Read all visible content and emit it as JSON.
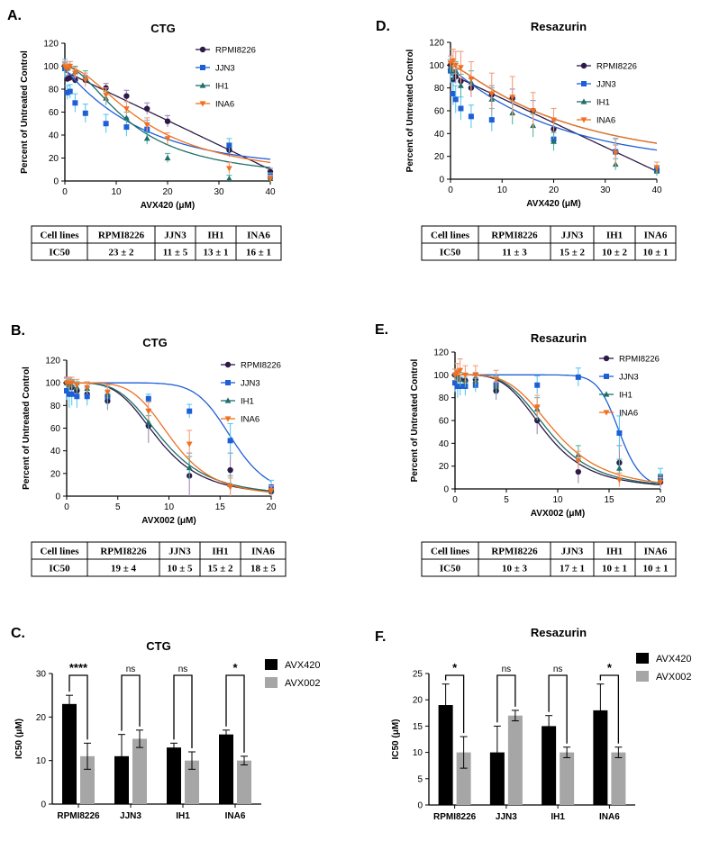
{
  "panels": [
    {
      "letter": "A.",
      "title": "CTG",
      "xlabel": "AVX420 (μM)",
      "ylabel": "Percent of Untreated Control",
      "xticks": [
        "0",
        "10",
        "20",
        "30",
        "40"
      ],
      "yticks": [
        "0",
        "20",
        "40",
        "60",
        "80",
        "100",
        "120"
      ]
    },
    {
      "letter": "D.",
      "title": "Resazurin",
      "xlabel": "AVX420 (μM)",
      "ylabel": "Percent of Untreated Control",
      "xticks": [
        "0",
        "10",
        "20",
        "30",
        "40"
      ],
      "yticks": [
        "0",
        "20",
        "40",
        "60",
        "80",
        "100",
        "120"
      ]
    },
    {
      "letter": "B.",
      "title": "CTG",
      "xlabel": "AVX002 (μM)",
      "ylabel": "Percent of Untreated Control",
      "xticks": [
        "0",
        "5",
        "10",
        "15",
        "20"
      ],
      "yticks": [
        "0",
        "20",
        "40",
        "60",
        "80",
        "100",
        "120"
      ]
    },
    {
      "letter": "E.",
      "title": "Resazurin",
      "xlabel": "AVX002 (μM)",
      "ylabel": "Percent of Untreated Control",
      "xticks": [
        "0",
        "5",
        "10",
        "15",
        "20"
      ],
      "yticks": [
        "0",
        "20",
        "40",
        "60",
        "80",
        "100",
        "120"
      ]
    },
    {
      "letter": "C.",
      "title": "CTG",
      "xlabel": "",
      "ylabel": "IC50 (μM)",
      "xticks": [
        "RPMI8226",
        "JJN3",
        "IH1",
        "INA6"
      ],
      "yticks": [
        "0",
        "10",
        "20",
        "30"
      ]
    },
    {
      "letter": "F.",
      "title": "Resazurin",
      "xlabel": "",
      "ylabel": "IC50 (μM)",
      "xticks": [
        "RPMI8226",
        "JJN3",
        "IH1",
        "INA6"
      ],
      "yticks": [
        "0",
        "5",
        "10",
        "15",
        "20",
        "25"
      ]
    }
  ],
  "legend_lines": [
    "RPMI8226",
    "JJN3",
    "IH1",
    "INA6"
  ],
  "legend_bars": [
    "AVX420",
    "AVX002"
  ],
  "colors": {
    "RPMI8226": "#2e1a47",
    "JJN3": "#1f5fd6",
    "IH1": "#1f6e6a",
    "INA6": "#f07020",
    "RPMI8226_err": "#a08ab8",
    "JJN3_err": "#5cc8f0",
    "IH1_err": "#4fb8a8",
    "INA6_err": "#f0a080",
    "AVX420": "#000000",
    "AVX002": "#a6a6a6"
  },
  "tables": [
    {
      "header": [
        "Cell lines",
        "RPMI8226",
        "JJN3",
        "IH1",
        "INA6"
      ],
      "row": [
        "IC50",
        "23 ± 2",
        "11 ± 5",
        "13 ± 1",
        "16 ± 1"
      ]
    },
    {
      "header": [
        "Cell lines",
        "RPMI8226",
        "JJN3",
        "IH1",
        "INA6"
      ],
      "row": [
        "IC50",
        "11 ± 3",
        "15 ± 2",
        "10 ± 2",
        "10 ± 1"
      ]
    },
    {
      "header": [
        "Cell lines",
        "RPMI8226",
        "JJN3",
        "IH1",
        "INA6"
      ],
      "row": [
        "IC50",
        "19 ± 4",
        "10 ± 5",
        "15 ± 2",
        "18 ± 5"
      ]
    },
    {
      "header": [
        "Cell lines",
        "RPMI8226",
        "JJN3",
        "IH1",
        "INA6"
      ],
      "row": [
        "IC50",
        "10 ± 3",
        "17 ± 1",
        "10 ± 1",
        "10 ± 1"
      ]
    }
  ],
  "chart_data": [
    {
      "type": "scatter",
      "title": "CTG",
      "xlabel": "AVX420 (μM)",
      "ylabel": "Percent of Untreated Control",
      "xlim": [
        0,
        40
      ],
      "ylim": [
        0,
        120
      ],
      "x": [
        0,
        0.5,
        1,
        2,
        4,
        8,
        12,
        16,
        20,
        32,
        40
      ],
      "series": [
        {
          "name": "RPMI8226",
          "values": [
            100,
            89,
            90,
            88,
            88,
            81,
            74,
            63,
            52,
            27,
            8
          ],
          "errors": [
            3,
            3,
            3,
            3,
            4,
            4,
            5,
            5,
            5,
            6,
            3
          ],
          "curve": "linear"
        },
        {
          "name": "JJN3",
          "values": [
            98,
            77,
            78,
            68,
            59,
            50,
            47,
            45,
            null,
            31,
            4
          ],
          "errors": [
            8,
            6,
            6,
            8,
            8,
            8,
            8,
            8,
            null,
            6,
            3
          ],
          "curve": "exp",
          "ic50": 11
        },
        {
          "name": "IH1",
          "values": [
            100,
            98,
            100,
            95,
            90,
            72,
            55,
            37,
            20,
            2,
            2
          ],
          "errors": [
            4,
            4,
            4,
            5,
            6,
            6,
            5,
            5,
            4,
            3,
            2
          ],
          "curve": "sigmoid",
          "ic50": 13,
          "hill": 1.8
        },
        {
          "name": "INA6",
          "values": [
            100,
            98,
            100,
            94,
            88,
            75,
            63,
            49,
            37,
            11,
            2
          ],
          "errors": [
            4,
            4,
            4,
            5,
            6,
            6,
            6,
            6,
            5,
            5,
            3
          ],
          "curve": "sigmoid",
          "ic50": 16,
          "hill": 1.8
        }
      ]
    },
    {
      "type": "scatter",
      "title": "Resazurin",
      "xlabel": "AVX420 (μM)",
      "ylabel": "Percent of Untreated Control",
      "xlim": [
        0,
        40
      ],
      "ylim": [
        0,
        120
      ],
      "x": [
        0,
        0.5,
        1,
        2,
        4,
        8,
        12,
        16,
        20,
        32,
        40
      ],
      "series": [
        {
          "name": "RPMI8226",
          "values": [
            100,
            87,
            90,
            86,
            80,
            74,
            71,
            60,
            44,
            24,
            8
          ],
          "errors": [
            5,
            6,
            6,
            6,
            8,
            8,
            8,
            9,
            7,
            6,
            4
          ],
          "curve": "linear"
        },
        {
          "name": "JJN3",
          "values": [
            95,
            75,
            70,
            62,
            55,
            52,
            null,
            null,
            35,
            24,
            8
          ],
          "errors": [
            10,
            10,
            12,
            10,
            10,
            10,
            null,
            null,
            6,
            12,
            4
          ],
          "curve": "exp",
          "ic50": 15
        },
        {
          "name": "IH1",
          "values": [
            98,
            95,
            95,
            82,
            85,
            70,
            58,
            47,
            33,
            13,
            7
          ],
          "errors": [
            5,
            8,
            8,
            10,
            10,
            10,
            10,
            10,
            8,
            5,
            4
          ],
          "curve": "sigmoid",
          "ic50": 22,
          "hill": 1.3
        },
        {
          "name": "INA6",
          "values": [
            102,
            104,
            100,
            98,
            88,
            75,
            72,
            60,
            52,
            23,
            10
          ],
          "errors": [
            6,
            10,
            12,
            14,
            15,
            18,
            18,
            16,
            10,
            12,
            5
          ],
          "curve": "sigmoid",
          "ic50": 22,
          "hill": 1.3
        }
      ]
    },
    {
      "type": "scatter",
      "title": "CTG",
      "xlabel": "AVX002 (μM)",
      "ylabel": "Percent of Untreated Control",
      "xlim": [
        0,
        20
      ],
      "ylim": [
        0,
        120
      ],
      "x": [
        0,
        0.25,
        0.5,
        1,
        2,
        4,
        8,
        12,
        16,
        20
      ],
      "series": [
        {
          "name": "RPMI8226",
          "values": [
            100,
            98,
            96,
            93,
            90,
            84,
            62,
            18,
            23,
            4
          ],
          "errors": [
            5,
            6,
            6,
            6,
            6,
            8,
            15,
            20,
            15,
            4
          ],
          "curve": "sigmoid",
          "ic50": 9,
          "hill": 4
        },
        {
          "name": "JJN3",
          "values": [
            93,
            90,
            90,
            88,
            88,
            88,
            86,
            75,
            49,
            8
          ],
          "errors": [
            8,
            12,
            10,
            10,
            8,
            8,
            4,
            6,
            15,
            6
          ],
          "curve": "sigmoid",
          "ic50": 16.2,
          "hill": 9
        },
        {
          "name": "IH1",
          "values": [
            100,
            98,
            98,
            96,
            95,
            90,
            65,
            25,
            10,
            5
          ],
          "errors": [
            4,
            5,
            5,
            5,
            5,
            8,
            6,
            10,
            8,
            4
          ],
          "curve": "sigmoid",
          "ic50": 9.4,
          "hill": 4
        },
        {
          "name": "INA6",
          "values": [
            100,
            100,
            100,
            98,
            96,
            92,
            75,
            46,
            8,
            5
          ],
          "errors": [
            4,
            5,
            5,
            5,
            5,
            6,
            8,
            12,
            8,
            4
          ],
          "curve": "sigmoid",
          "ic50": 10.3,
          "hill": 5
        }
      ]
    },
    {
      "type": "scatter",
      "title": "Resazurin",
      "xlabel": "AVX002 (μM)",
      "ylabel": "Percent of Untreated Control",
      "xlim": [
        0,
        20
      ],
      "ylim": [
        0,
        120
      ],
      "x": [
        0,
        0.25,
        0.5,
        1,
        2,
        4,
        8,
        12,
        16,
        20
      ],
      "series": [
        {
          "name": "RPMI8226",
          "values": [
            100,
            98,
            96,
            95,
            96,
            86,
            60,
            15,
            23,
            6
          ],
          "errors": [
            5,
            6,
            6,
            6,
            6,
            8,
            12,
            10,
            15,
            5
          ],
          "curve": "sigmoid",
          "ic50": 8.8,
          "hill": 4
        },
        {
          "name": "JJN3",
          "values": [
            93,
            90,
            90,
            90,
            91,
            91,
            91,
            98,
            49,
            10
          ],
          "errors": [
            8,
            10,
            8,
            8,
            6,
            8,
            8,
            8,
            15,
            8
          ],
          "curve": "sigmoid",
          "ic50": 16,
          "hill": 15
        },
        {
          "name": "IH1",
          "values": [
            100,
            98,
            96,
            95,
            95,
            90,
            70,
            30,
            18,
            8
          ],
          "errors": [
            5,
            6,
            6,
            6,
            6,
            8,
            10,
            8,
            8,
            5
          ],
          "curve": "sigmoid",
          "ic50": 9.2,
          "hill": 4
        },
        {
          "name": "INA6",
          "values": [
            100,
            102,
            104,
            100,
            100,
            96,
            72,
            25,
            8,
            6
          ],
          "errors": [
            5,
            8,
            10,
            8,
            8,
            8,
            10,
            8,
            6,
            4
          ],
          "curve": "sigmoid",
          "ic50": 9.8,
          "hill": 4
        }
      ]
    },
    {
      "type": "bar",
      "title": "CTG",
      "xlabel": "",
      "ylabel": "IC50 (μM)",
      "ylim": [
        0,
        30
      ],
      "categories": [
        "RPMI8226",
        "JJN3",
        "IH1",
        "INA6"
      ],
      "series": [
        {
          "name": "AVX420",
          "values": [
            23,
            11,
            13,
            16
          ],
          "errors": [
            2,
            5,
            1,
            1
          ]
        },
        {
          "name": "AVX002",
          "values": [
            11,
            15,
            10,
            10
          ],
          "errors": [
            3,
            2,
            2,
            1
          ]
        }
      ],
      "significance": [
        "****",
        "ns",
        "ns",
        "*"
      ]
    },
    {
      "type": "bar",
      "title": "Resazurin",
      "xlabel": "",
      "ylabel": "IC50 (μM)",
      "ylim": [
        0,
        25
      ],
      "categories": [
        "RPMI8226",
        "JJN3",
        "IH1",
        "INA6"
      ],
      "series": [
        {
          "name": "AVX420",
          "values": [
            19,
            10,
            15,
            18
          ],
          "errors": [
            4,
            5,
            2,
            5
          ]
        },
        {
          "name": "AVX002",
          "values": [
            10,
            17,
            10,
            10
          ],
          "errors": [
            3,
            1,
            1,
            1
          ]
        }
      ],
      "significance": [
        "*",
        "ns",
        "ns",
        "*"
      ]
    }
  ]
}
